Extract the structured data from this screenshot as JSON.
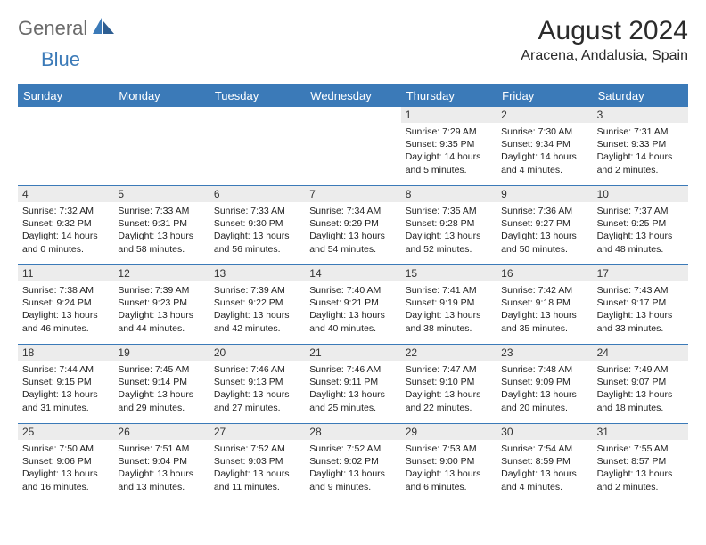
{
  "branding": {
    "logo_primary": "General",
    "logo_accent": "Blue",
    "logo_primary_color": "#6b6b6b",
    "logo_accent_color": "#3b7ab8"
  },
  "header": {
    "title": "August 2024",
    "location": "Aracena, Andalusia, Spain"
  },
  "calendar": {
    "accent_color": "#3b7ab8",
    "daynum_bg": "#ececec",
    "text_color": "#222222",
    "day_names": [
      "Sunday",
      "Monday",
      "Tuesday",
      "Wednesday",
      "Thursday",
      "Friday",
      "Saturday"
    ],
    "weeks": [
      [
        {
          "empty": true
        },
        {
          "empty": true
        },
        {
          "empty": true
        },
        {
          "empty": true
        },
        {
          "num": "1",
          "sunrise": "7:29 AM",
          "sunset": "9:35 PM",
          "daylight": "14 hours and 5 minutes."
        },
        {
          "num": "2",
          "sunrise": "7:30 AM",
          "sunset": "9:34 PM",
          "daylight": "14 hours and 4 minutes."
        },
        {
          "num": "3",
          "sunrise": "7:31 AM",
          "sunset": "9:33 PM",
          "daylight": "14 hours and 2 minutes."
        }
      ],
      [
        {
          "num": "4",
          "sunrise": "7:32 AM",
          "sunset": "9:32 PM",
          "daylight": "14 hours and 0 minutes."
        },
        {
          "num": "5",
          "sunrise": "7:33 AM",
          "sunset": "9:31 PM",
          "daylight": "13 hours and 58 minutes."
        },
        {
          "num": "6",
          "sunrise": "7:33 AM",
          "sunset": "9:30 PM",
          "daylight": "13 hours and 56 minutes."
        },
        {
          "num": "7",
          "sunrise": "7:34 AM",
          "sunset": "9:29 PM",
          "daylight": "13 hours and 54 minutes."
        },
        {
          "num": "8",
          "sunrise": "7:35 AM",
          "sunset": "9:28 PM",
          "daylight": "13 hours and 52 minutes."
        },
        {
          "num": "9",
          "sunrise": "7:36 AM",
          "sunset": "9:27 PM",
          "daylight": "13 hours and 50 minutes."
        },
        {
          "num": "10",
          "sunrise": "7:37 AM",
          "sunset": "9:25 PM",
          "daylight": "13 hours and 48 minutes."
        }
      ],
      [
        {
          "num": "11",
          "sunrise": "7:38 AM",
          "sunset": "9:24 PM",
          "daylight": "13 hours and 46 minutes."
        },
        {
          "num": "12",
          "sunrise": "7:39 AM",
          "sunset": "9:23 PM",
          "daylight": "13 hours and 44 minutes."
        },
        {
          "num": "13",
          "sunrise": "7:39 AM",
          "sunset": "9:22 PM",
          "daylight": "13 hours and 42 minutes."
        },
        {
          "num": "14",
          "sunrise": "7:40 AM",
          "sunset": "9:21 PM",
          "daylight": "13 hours and 40 minutes."
        },
        {
          "num": "15",
          "sunrise": "7:41 AM",
          "sunset": "9:19 PM",
          "daylight": "13 hours and 38 minutes."
        },
        {
          "num": "16",
          "sunrise": "7:42 AM",
          "sunset": "9:18 PM",
          "daylight": "13 hours and 35 minutes."
        },
        {
          "num": "17",
          "sunrise": "7:43 AM",
          "sunset": "9:17 PM",
          "daylight": "13 hours and 33 minutes."
        }
      ],
      [
        {
          "num": "18",
          "sunrise": "7:44 AM",
          "sunset": "9:15 PM",
          "daylight": "13 hours and 31 minutes."
        },
        {
          "num": "19",
          "sunrise": "7:45 AM",
          "sunset": "9:14 PM",
          "daylight": "13 hours and 29 minutes."
        },
        {
          "num": "20",
          "sunrise": "7:46 AM",
          "sunset": "9:13 PM",
          "daylight": "13 hours and 27 minutes."
        },
        {
          "num": "21",
          "sunrise": "7:46 AM",
          "sunset": "9:11 PM",
          "daylight": "13 hours and 25 minutes."
        },
        {
          "num": "22",
          "sunrise": "7:47 AM",
          "sunset": "9:10 PM",
          "daylight": "13 hours and 22 minutes."
        },
        {
          "num": "23",
          "sunrise": "7:48 AM",
          "sunset": "9:09 PM",
          "daylight": "13 hours and 20 minutes."
        },
        {
          "num": "24",
          "sunrise": "7:49 AM",
          "sunset": "9:07 PM",
          "daylight": "13 hours and 18 minutes."
        }
      ],
      [
        {
          "num": "25",
          "sunrise": "7:50 AM",
          "sunset": "9:06 PM",
          "daylight": "13 hours and 16 minutes."
        },
        {
          "num": "26",
          "sunrise": "7:51 AM",
          "sunset": "9:04 PM",
          "daylight": "13 hours and 13 minutes."
        },
        {
          "num": "27",
          "sunrise": "7:52 AM",
          "sunset": "9:03 PM",
          "daylight": "13 hours and 11 minutes."
        },
        {
          "num": "28",
          "sunrise": "7:52 AM",
          "sunset": "9:02 PM",
          "daylight": "13 hours and 9 minutes."
        },
        {
          "num": "29",
          "sunrise": "7:53 AM",
          "sunset": "9:00 PM",
          "daylight": "13 hours and 6 minutes."
        },
        {
          "num": "30",
          "sunrise": "7:54 AM",
          "sunset": "8:59 PM",
          "daylight": "13 hours and 4 minutes."
        },
        {
          "num": "31",
          "sunrise": "7:55 AM",
          "sunset": "8:57 PM",
          "daylight": "13 hours and 2 minutes."
        }
      ]
    ],
    "labels": {
      "sunrise": "Sunrise:",
      "sunset": "Sunset:",
      "daylight": "Daylight:"
    }
  }
}
